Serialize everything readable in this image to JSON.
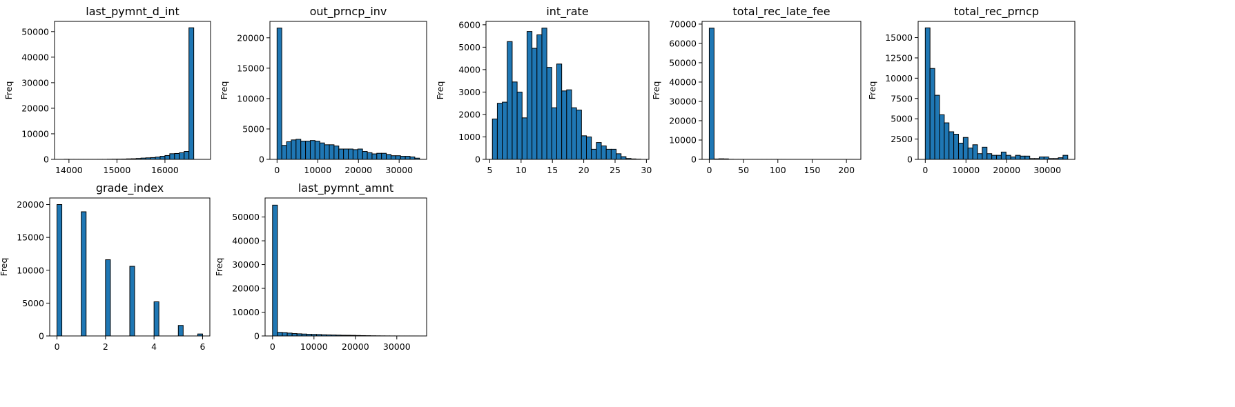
{
  "figure": {
    "bar_color": "#1f77b4",
    "edge_color": "#000000"
  },
  "chart_data": [
    {
      "type": "bar",
      "title": "last_pymnt_d_int",
      "ylabel": "Freq",
      "xlim": [
        13700,
        16950
      ],
      "ylim": [
        0,
        54000
      ],
      "xticks": [
        14000,
        15000,
        16000
      ],
      "yticks": [
        0,
        10000,
        20000,
        30000,
        40000,
        50000
      ],
      "bin_start": 13900,
      "bin_width": 100,
      "values": [
        40,
        10,
        10,
        10,
        10,
        10,
        10,
        20,
        20,
        60,
        80,
        100,
        130,
        200,
        240,
        350,
        500,
        600,
        700,
        900,
        1200,
        1500,
        2200,
        2300,
        2600,
        3100,
        51500
      ]
    },
    {
      "type": "bar",
      "title": "out_prncp_inv",
      "ylabel": "Freq",
      "xlim": [
        -1750,
        36750
      ],
      "ylim": [
        0,
        22700
      ],
      "xticks": [
        0,
        10000,
        20000,
        30000
      ],
      "yticks": [
        0,
        5000,
        10000,
        15000,
        20000
      ],
      "bin_start": 0,
      "bin_width": 1167,
      "values": [
        21600,
        2300,
        2900,
        3200,
        3300,
        3000,
        3000,
        3100,
        3000,
        2700,
        2400,
        2400,
        2200,
        1700,
        1700,
        1700,
        1600,
        1700,
        1300,
        1100,
        900,
        1000,
        1000,
        800,
        600,
        600,
        500,
        500,
        400,
        200
      ]
    },
    {
      "type": "bar",
      "title": "int_rate",
      "ylabel": "Freq",
      "xlim": [
        4.4,
        30.4
      ],
      "ylim": [
        0,
        6150
      ],
      "xticks": [
        5,
        10,
        15,
        20,
        25,
        30
      ],
      "yticks": [
        0,
        1000,
        2000,
        3000,
        4000,
        5000,
        6000
      ],
      "bin_start": 5.42,
      "bin_width": 0.79,
      "values": [
        1800,
        2500,
        2550,
        5250,
        3450,
        3000,
        1850,
        5700,
        4950,
        5550,
        5850,
        4100,
        2300,
        4250,
        3050,
        3100,
        2300,
        2200,
        1050,
        1000,
        450,
        750,
        600,
        450,
        450,
        250,
        120,
        40,
        20,
        10
      ]
    },
    {
      "type": "bar",
      "title": "total_rec_late_fee",
      "ylabel": "Freq",
      "xlim": [
        -10.5,
        221
      ],
      "ylim": [
        0,
        71400
      ],
      "xticks": [
        0,
        50,
        100,
        150,
        200
      ],
      "yticks": [
        0,
        10000,
        20000,
        30000,
        40000,
        50000,
        60000,
        70000
      ],
      "bin_start": 0,
      "bin_width": 7,
      "values": [
        67900,
        200,
        300,
        250,
        50,
        20,
        20,
        10,
        10,
        10,
        10,
        10,
        10,
        10,
        10,
        10,
        5,
        5,
        5,
        5,
        5,
        5,
        5,
        5,
        5,
        5,
        5,
        5,
        5,
        5
      ]
    },
    {
      "type": "bar",
      "title": "total_rec_prncp",
      "ylabel": "Freq",
      "xlim": [
        -1750,
        36750
      ],
      "ylim": [
        0,
        17000
      ],
      "xticks": [
        0,
        10000,
        20000,
        30000
      ],
      "yticks": [
        0,
        2500,
        5000,
        7500,
        10000,
        12500,
        15000
      ],
      "bin_start": 0,
      "bin_width": 1167,
      "values": [
        16200,
        11200,
        7900,
        5500,
        4500,
        3400,
        3100,
        2000,
        2700,
        1400,
        1800,
        700,
        1500,
        700,
        500,
        500,
        900,
        500,
        300,
        500,
        400,
        400,
        100,
        100,
        300,
        300,
        100,
        100,
        200,
        500
      ]
    },
    {
      "type": "bar",
      "title": "grade_index",
      "ylabel": "Freq",
      "xlim": [
        -0.3,
        6.3
      ],
      "ylim": [
        0,
        21000
      ],
      "xticks": [
        0,
        2,
        4,
        6
      ],
      "yticks": [
        0,
        5000,
        10000,
        15000,
        20000
      ],
      "bin_start": 0,
      "bin_width": 0.2,
      "values": [
        20000,
        0,
        0,
        0,
        0,
        18900,
        0,
        0,
        0,
        0,
        11600,
        0,
        0,
        0,
        0,
        10600,
        0,
        0,
        0,
        0,
        5200,
        0,
        0,
        0,
        0,
        1600,
        0,
        0,
        0,
        300
      ]
    },
    {
      "type": "bar",
      "title": "last_pymnt_amnt",
      "ylabel": "Freq",
      "xlim": [
        -1800,
        37200
      ],
      "ylim": [
        0,
        58000
      ],
      "xticks": [
        0,
        10000,
        20000,
        30000
      ],
      "yticks": [
        0,
        10000,
        20000,
        30000,
        40000,
        50000
      ],
      "bin_start": 0,
      "bin_width": 1180,
      "values": [
        55000,
        1500,
        1400,
        1200,
        1000,
        900,
        800,
        700,
        650,
        600,
        500,
        450,
        400,
        350,
        300,
        280,
        250,
        200,
        150,
        120,
        80,
        60,
        40,
        30,
        20,
        15,
        10,
        8,
        5,
        3
      ]
    }
  ]
}
